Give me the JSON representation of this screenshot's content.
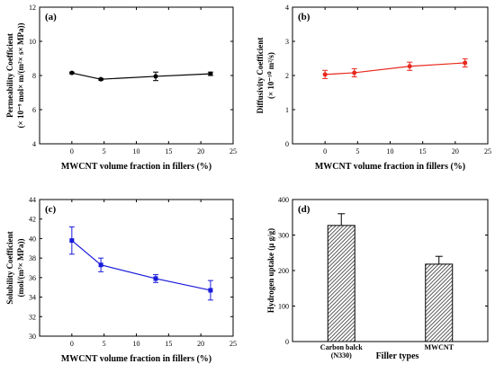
{
  "chart_data": [
    {
      "id": "a",
      "type": "line",
      "panel_label": "(a)",
      "xlabel": "MWCNT volume fraction in fillers (%)",
      "ylabel_line1": "Permeability Coefficient",
      "ylabel_line2": "(× 10⁻⁹ mol× m/(m²× s× MPa))",
      "xlim": [
        -5,
        25
      ],
      "ylim": [
        4,
        12
      ],
      "xticks": [
        0,
        5,
        10,
        15,
        20,
        25
      ],
      "yticks": [
        4,
        6,
        8,
        10,
        12
      ],
      "color": "#000000",
      "marker": "circle",
      "x": [
        0,
        4.5,
        13,
        21.5
      ],
      "y": [
        8.15,
        7.78,
        7.95,
        8.1
      ],
      "err": [
        0.05,
        0.05,
        0.25,
        0.1
      ]
    },
    {
      "id": "b",
      "type": "line",
      "panel_label": "(b)",
      "xlabel": "MWCNT volume fraction in fillers (%)",
      "ylabel_line1": "Diffusivity Coefficient",
      "ylabel_line2": "(× 10⁻¹⁰ m²/s)",
      "xlim": [
        -5,
        25
      ],
      "ylim": [
        0,
        4
      ],
      "xticks": [
        0,
        5,
        10,
        15,
        20,
        25
      ],
      "yticks": [
        0,
        1,
        2,
        3,
        4
      ],
      "color": "#e8281e",
      "marker": "circle",
      "x": [
        0,
        4.5,
        13,
        21.5
      ],
      "y": [
        2.03,
        2.08,
        2.27,
        2.37
      ],
      "err": [
        0.12,
        0.12,
        0.12,
        0.12
      ]
    },
    {
      "id": "c",
      "type": "line",
      "panel_label": "(c)",
      "xlabel": "MWCNT volume fraction in fillers (%)",
      "ylabel_line1": "Solubility Coefficient",
      "ylabel_line2": "(mol/(m³× MPa))",
      "xlim": [
        -5,
        25
      ],
      "ylim": [
        30,
        44
      ],
      "xticks": [
        0,
        5,
        10,
        15,
        20,
        25
      ],
      "yticks": [
        30,
        32,
        34,
        36,
        38,
        40,
        42,
        44
      ],
      "color": "#1a1adc",
      "marker": "square",
      "x": [
        0,
        4.5,
        13,
        21.5
      ],
      "y": [
        39.8,
        37.3,
        35.9,
        34.7
      ],
      "err": [
        1.4,
        0.7,
        0.4,
        1.0
      ]
    },
    {
      "id": "d",
      "type": "bar",
      "panel_label": "(d)",
      "xlabel": "Filler types",
      "ylabel_line1": "Hydrogen uptake (μ g/g)",
      "ylabel_line2": "",
      "categories": [
        [
          "Carbon balck",
          "(N330)"
        ],
        [
          "MWCNT"
        ]
      ],
      "values": [
        327,
        218
      ],
      "err": [
        33,
        22
      ],
      "ylim": [
        0,
        400
      ],
      "yticks": [
        0,
        100,
        200,
        300,
        400
      ]
    }
  ]
}
